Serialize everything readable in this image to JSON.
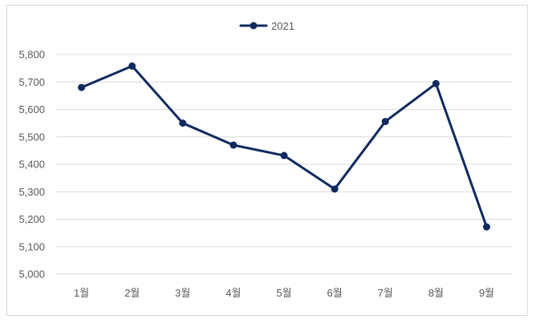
{
  "chart_data": {
    "type": "line",
    "categories": [
      "1월",
      "2월",
      "3월",
      "4월",
      "5월",
      "6월",
      "7월",
      "8월",
      "9월"
    ],
    "series": [
      {
        "name": "2021",
        "values": [
          5680,
          5758,
          5550,
          5470,
          5432,
          5310,
          5556,
          5694,
          5172
        ]
      }
    ],
    "ylim": [
      5000,
      5800
    ],
    "yticks": [
      5000,
      5100,
      5200,
      5300,
      5400,
      5500,
      5600,
      5700,
      5800
    ],
    "ytick_labels": [
      "5,000",
      "5,100",
      "5,200",
      "5,300",
      "5,400",
      "5,500",
      "5,600",
      "5,700",
      "5,800"
    ],
    "grid": true,
    "legend_position": "top-center",
    "colors": {
      "series": "#0f2a5e",
      "grid": "#d9d9d9",
      "text": "#595959"
    }
  }
}
